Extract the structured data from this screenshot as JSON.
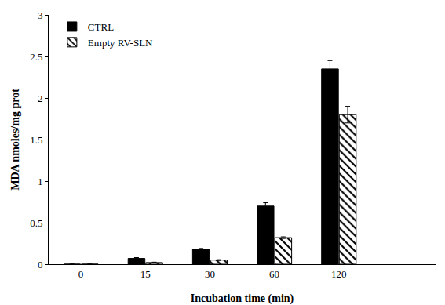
{
  "chart_data": {
    "type": "bar",
    "x_label": "Incubation time (min)",
    "y_label": "MDA nmoles/mg prot",
    "categories": [
      "0",
      "15",
      "30",
      "60",
      "120",
      null
    ],
    "series": [
      {
        "name": "CTRL",
        "color": "#000000",
        "marker": "solid",
        "values": [
          0,
          0.07,
          0.18,
          0.7,
          2.35,
          null
        ],
        "errors": [
          0,
          0.01,
          0.01,
          0.04,
          0.1,
          null
        ]
      },
      {
        "name": "Empty RV-SLN",
        "color": "#000000",
        "marker": "hatch",
        "values": [
          0,
          0.02,
          0.05,
          0.32,
          1.8,
          null
        ],
        "errors": [
          0,
          0.005,
          0.005,
          0.01,
          0.1,
          null
        ]
      }
    ],
    "ylim": [
      0,
      3
    ],
    "yticks": [
      0,
      0.5,
      1,
      1.5,
      2,
      2.5,
      3
    ],
    "grid": false,
    "legend": "top-left"
  }
}
